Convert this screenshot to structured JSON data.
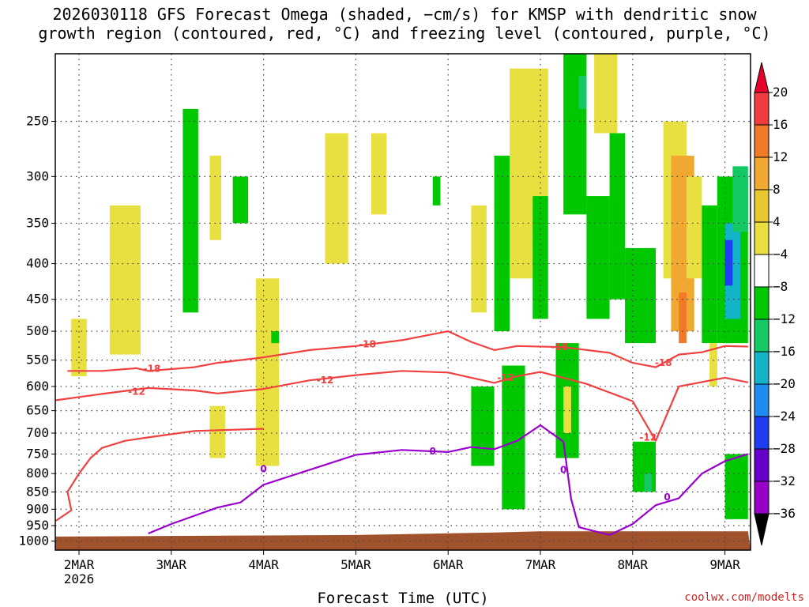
{
  "chart_data": {
    "type": "heatmap",
    "title_line1": "2026030118 GFS Forecast Omega (shaded, −cm/s) for KMSP with dendritic snow",
    "title_line2": "growth region (contoured, red, °C) and freezing level (contoured, purple, °C)",
    "xlabel": "Forecast Time (UTC)",
    "credit": "coolwx.com/modelts",
    "x_range_days": [
      "2026-03-01T18",
      "2026-03-09T06"
    ],
    "x_ticks": [
      "2MAR",
      "3MAR",
      "4MAR",
      "5MAR",
      "6MAR",
      "7MAR",
      "8MAR",
      "9MAR"
    ],
    "x_tick_year": "2026",
    "y_axis": {
      "scale": "log-pressure",
      "units": "hPa",
      "range": [
        1030,
        200
      ],
      "ticks": [
        "250",
        "300",
        "350",
        "400",
        "450",
        "500",
        "550",
        "600",
        "650",
        "700",
        "750",
        "800",
        "850",
        "900",
        "950",
        "1000"
      ]
    },
    "colorbar": {
      "labels": [
        "20",
        "16",
        "12",
        "8",
        "4",
        "−4",
        "−8",
        "−12",
        "−16",
        "−20",
        "−24",
        "−28",
        "−32",
        "−36"
      ],
      "colors": [
        "#e8002a",
        "#f03c3c",
        "#f07a28",
        "#f0a830",
        "#e8c830",
        "#e8e040",
        "#ffffff",
        "#00c800",
        "#14c864",
        "#14b4c8",
        "#1e8cf0",
        "#1e3cf0",
        "#6400c8",
        "#9600c8",
        "#a8a8a8",
        "#000000"
      ]
    },
    "contours": [
      {
        "name": "-18",
        "color": "#f04040",
        "points": [
          [
            "2026-03-01T21",
            570
          ],
          [
            "2026-03-02T06",
            570
          ],
          [
            "2026-03-02T15",
            565
          ],
          [
            "2026-03-02T18",
            570
          ],
          [
            "2026-03-03T06",
            563
          ],
          [
            "2026-03-03T12",
            555
          ],
          [
            "2026-03-04T00",
            545
          ],
          [
            "2026-03-04T12",
            532
          ],
          [
            "2026-03-05T00",
            525
          ],
          [
            "2026-03-05T12",
            515
          ],
          [
            "2026-03-06T00",
            500
          ],
          [
            "2026-03-06T06",
            518
          ],
          [
            "2026-03-06T12",
            532
          ],
          [
            "2026-03-06T18",
            525
          ],
          [
            "2026-03-07T06",
            527
          ],
          [
            "2026-03-07T18",
            537
          ],
          [
            "2026-03-08T00",
            555
          ],
          [
            "2026-03-08T06",
            563
          ],
          [
            "2026-03-08T12",
            540
          ],
          [
            "2026-03-08T18",
            536
          ],
          [
            "2026-03-09T00",
            525
          ],
          [
            "2026-03-09T06",
            526
          ]
        ]
      },
      {
        "name": "-12",
        "color": "#f04040",
        "points": [
          [
            "2026-03-01T18",
            628
          ],
          [
            "2026-03-02T06",
            615
          ],
          [
            "2026-03-02T18",
            603
          ],
          [
            "2026-03-03T06",
            608
          ],
          [
            "2026-03-03T12",
            614
          ],
          [
            "2026-03-04T00",
            605
          ],
          [
            "2026-03-04T12",
            588
          ],
          [
            "2026-03-05T00",
            578
          ],
          [
            "2026-03-05T12",
            570
          ],
          [
            "2026-03-06T00",
            573
          ],
          [
            "2026-03-06T12",
            593
          ],
          [
            "2026-03-06T18",
            580
          ],
          [
            "2026-03-07T00",
            572
          ],
          [
            "2026-03-07T12",
            595
          ],
          [
            "2026-03-08T00",
            630
          ],
          [
            "2026-03-08T06",
            718
          ],
          [
            "2026-03-08T12",
            600
          ],
          [
            "2026-03-09T00",
            583
          ],
          [
            "2026-03-09T06",
            592
          ]
        ]
      },
      {
        "name": "-12b",
        "color": "#f04040",
        "points": [
          [
            "2026-03-01T18",
            935
          ],
          [
            "2026-03-01T22",
            903
          ],
          [
            "2026-03-01T21",
            850
          ],
          [
            "2026-03-02T00",
            800
          ],
          [
            "2026-03-02T03",
            760
          ],
          [
            "2026-03-02T06",
            735
          ],
          [
            "2026-03-02T12",
            718
          ],
          [
            "2026-03-02T18",
            710
          ],
          [
            "2026-03-03T06",
            695
          ],
          [
            "2026-03-04T00",
            690
          ]
        ]
      },
      {
        "name": "0",
        "color": "#9900cc",
        "points": [
          [
            "2026-03-02T18",
            975
          ],
          [
            "2026-03-03T00",
            945
          ],
          [
            "2026-03-03T12",
            895
          ],
          [
            "2026-03-03T18",
            880
          ],
          [
            "2026-03-04T00",
            830
          ],
          [
            "2026-03-04T12",
            790
          ],
          [
            "2026-03-05T00",
            752
          ],
          [
            "2026-03-05T12",
            740
          ],
          [
            "2026-03-06T00",
            745
          ],
          [
            "2026-03-06T06",
            733
          ],
          [
            "2026-03-06T12",
            738
          ],
          [
            "2026-03-06T18",
            718
          ],
          [
            "2026-03-07T00",
            682
          ],
          [
            "2026-03-07T06",
            720
          ],
          [
            "2026-03-07T08",
            870
          ],
          [
            "2026-03-07T10",
            955
          ],
          [
            "2026-03-07T18",
            980
          ],
          [
            "2026-03-08T00",
            945
          ],
          [
            "2026-03-08T06",
            888
          ],
          [
            "2026-03-08T12",
            868
          ],
          [
            "2026-03-08T18",
            800
          ],
          [
            "2026-03-09T00",
            768
          ],
          [
            "2026-03-09T06",
            750
          ]
        ]
      }
    ],
    "contour_labels": [
      {
        "text": "-18",
        "color": "#f04040",
        "t": "2026-03-02T19",
        "p": 566
      },
      {
        "text": "-18",
        "color": "#f04040",
        "t": "2026-03-05T03",
        "p": 522
      },
      {
        "text": "-18",
        "color": "#f04040",
        "t": "2026-03-07T05",
        "p": 527
      },
      {
        "text": "-18",
        "color": "#f04040",
        "t": "2026-03-08T08",
        "p": 555
      },
      {
        "text": "-12",
        "color": "#f04040",
        "t": "2026-03-02T15",
        "p": 610
      },
      {
        "text": "-12",
        "color": "#f04040",
        "t": "2026-03-04T16",
        "p": 588
      },
      {
        "text": "-12",
        "color": "#f04040",
        "t": "2026-03-06T15",
        "p": 583
      },
      {
        "text": "-12",
        "color": "#f04040",
        "t": "2026-03-08T04",
        "p": 710
      },
      {
        "text": "0",
        "color": "#9900cc",
        "t": "2026-03-04T00",
        "p": 788
      },
      {
        "text": "0",
        "color": "#9900cc",
        "t": "2026-03-05T20",
        "p": 743
      },
      {
        "text": "0",
        "color": "#9900cc",
        "t": "2026-03-07T06",
        "p": 790
      },
      {
        "text": "0",
        "color": "#9900cc",
        "t": "2026-03-08T09",
        "p": 865
      }
    ],
    "omega_patches": [
      {
        "t0": "2026-03-01T22",
        "t1": "2026-03-02T02",
        "p0": 480,
        "p1": 580,
        "value": 5
      },
      {
        "t0": "2026-03-02T08",
        "t1": "2026-03-02T16",
        "p0": 330,
        "p1": 540,
        "value": 5
      },
      {
        "t0": "2026-03-03T03",
        "t1": "2026-03-03T07",
        "p0": 240,
        "p1": 470,
        "value": -6
      },
      {
        "t0": "2026-03-03T10",
        "t1": "2026-03-03T13",
        "p0": 280,
        "p1": 370,
        "value": 5
      },
      {
        "t0": "2026-03-03T16",
        "t1": "2026-03-03T20",
        "p0": 300,
        "p1": 350,
        "value": -6
      },
      {
        "t0": "2026-03-03T10",
        "t1": "2026-03-03T14",
        "p0": 640,
        "p1": 760,
        "value": 5
      },
      {
        "t0": "2026-03-03T22",
        "t1": "2026-03-04T04",
        "p0": 420,
        "p1": 780,
        "value": 5
      },
      {
        "t0": "2026-03-04T02",
        "t1": "2026-03-04T04",
        "p0": 500,
        "p1": 520,
        "value": -6
      },
      {
        "t0": "2026-03-04T16",
        "t1": "2026-03-04T22",
        "p0": 260,
        "p1": 400,
        "value": 5
      },
      {
        "t0": "2026-03-05T04",
        "t1": "2026-03-05T08",
        "p0": 260,
        "p1": 340,
        "value": 5
      },
      {
        "t0": "2026-03-05T20",
        "t1": "2026-03-05T22",
        "p0": 300,
        "p1": 330,
        "value": -6
      },
      {
        "t0": "2026-03-06T06",
        "t1": "2026-03-06T10",
        "p0": 330,
        "p1": 470,
        "value": 5
      },
      {
        "t0": "2026-03-06T06",
        "t1": "2026-03-06T12",
        "p0": 600,
        "p1": 780,
        "value": -6
      },
      {
        "t0": "2026-03-06T12",
        "t1": "2026-03-06T16",
        "p0": 280,
        "p1": 500,
        "value": -6
      },
      {
        "t0": "2026-03-06T14",
        "t1": "2026-03-06T20",
        "p0": 560,
        "p1": 900,
        "value": -7
      },
      {
        "t0": "2026-03-06T16",
        "t1": "2026-03-07T02",
        "p0": 210,
        "p1": 420,
        "value": 5
      },
      {
        "t0": "2026-03-06T22",
        "t1": "2026-03-07T02",
        "p0": 320,
        "p1": 480,
        "value": -7
      },
      {
        "t0": "2026-03-07T04",
        "t1": "2026-03-07T10",
        "p0": 520,
        "p1": 760,
        "value": -7
      },
      {
        "t0": "2026-03-07T06",
        "t1": "2026-03-07T08",
        "p0": 600,
        "p1": 700,
        "value": 5
      },
      {
        "t0": "2026-03-07T06",
        "t1": "2026-03-07T12",
        "p0": 200,
        "p1": 340,
        "value": -7
      },
      {
        "t0": "2026-03-07T10",
        "t1": "2026-03-07T12",
        "p0": 215,
        "p1": 240,
        "value": -10
      },
      {
        "t0": "2026-03-07T12",
        "t1": "2026-03-07T18",
        "p0": 320,
        "p1": 480,
        "value": -7
      },
      {
        "t0": "2026-03-07T14",
        "t1": "2026-03-07T20",
        "p0": 200,
        "p1": 260,
        "value": 5
      },
      {
        "t0": "2026-03-07T18",
        "t1": "2026-03-07T22",
        "p0": 260,
        "p1": 450,
        "value": -7
      },
      {
        "t0": "2026-03-07T22",
        "t1": "2026-03-08T06",
        "p0": 380,
        "p1": 520,
        "value": -7
      },
      {
        "t0": "2026-03-08T00",
        "t1": "2026-03-08T06",
        "p0": 720,
        "p1": 850,
        "value": -7
      },
      {
        "t0": "2026-03-08T03",
        "t1": "2026-03-08T05",
        "p0": 800,
        "p1": 850,
        "value": -10
      },
      {
        "t0": "2026-03-08T08",
        "t1": "2026-03-08T14",
        "p0": 250,
        "p1": 420,
        "value": 5
      },
      {
        "t0": "2026-03-08T10",
        "t1": "2026-03-08T16",
        "p0": 280,
        "p1": 500,
        "value": 9
      },
      {
        "t0": "2026-03-08T12",
        "t1": "2026-03-08T14",
        "p0": 440,
        "p1": 520,
        "value": 13
      },
      {
        "t0": "2026-03-08T14",
        "t1": "2026-03-08T18",
        "p0": 300,
        "p1": 420,
        "value": 5
      },
      {
        "t0": "2026-03-08T18",
        "t1": "2026-03-08T22",
        "p0": 330,
        "p1": 520,
        "value": -7
      },
      {
        "t0": "2026-03-08T22",
        "t1": "2026-03-09T06",
        "p0": 300,
        "p1": 520,
        "value": -7
      },
      {
        "t0": "2026-03-09T00",
        "t1": "2026-03-09T04",
        "p0": 350,
        "p1": 480,
        "value": -14
      },
      {
        "t0": "2026-03-09T00",
        "t1": "2026-03-09T02",
        "p0": 370,
        "p1": 430,
        "value": -21
      },
      {
        "t0": "2026-03-09T02",
        "t1": "2026-03-09T06",
        "p0": 290,
        "p1": 360,
        "value": -10
      },
      {
        "t0": "2026-03-09T00",
        "t1": "2026-03-09T06",
        "p0": 750,
        "p1": 930,
        "value": -7
      },
      {
        "t0": "2026-03-08T20",
        "t1": "2026-03-08T22",
        "p0": 520,
        "p1": 600,
        "value": 5
      }
    ],
    "terrain": {
      "color": "#a0522d",
      "surface_hpa": [
        [
          "2026-03-01T18",
          985
        ],
        [
          "2026-03-05T00",
          980
        ],
        [
          "2026-03-06T12",
          972
        ],
        [
          "2026-03-07T00",
          968
        ],
        [
          "2026-03-09T06",
          968
        ]
      ]
    }
  }
}
